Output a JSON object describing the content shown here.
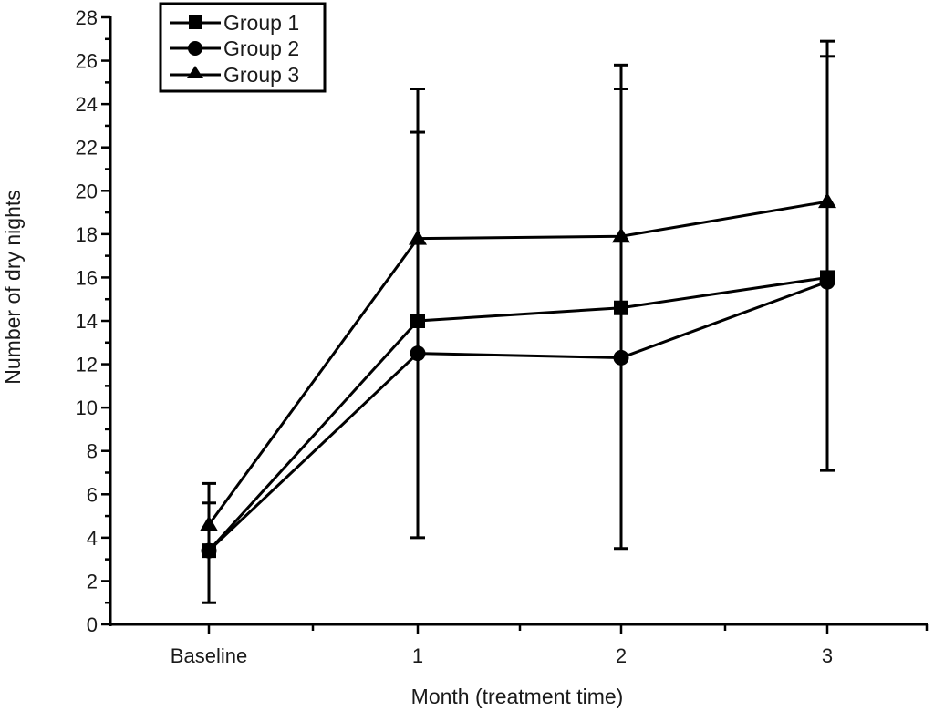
{
  "chart_data": {
    "type": "line",
    "title": "",
    "xlabel": "Month (treatment time)",
    "ylabel": "Number of dry nights",
    "categories": [
      "Baseline",
      "1",
      "2",
      "3"
    ],
    "ylim": [
      0,
      28
    ],
    "yticks": [
      0,
      2,
      4,
      6,
      8,
      10,
      12,
      14,
      16,
      18,
      20,
      22,
      24,
      26,
      28
    ],
    "grid": false,
    "legend_position": "top-left",
    "series": [
      {
        "name": "Group 1",
        "marker": "square",
        "values": [
          3.4,
          14.0,
          14.6,
          16.0
        ]
      },
      {
        "name": "Group 2",
        "marker": "circle",
        "values": [
          3.4,
          12.5,
          12.3,
          15.8
        ]
      },
      {
        "name": "Group 3",
        "marker": "triangle",
        "values": [
          4.6,
          17.8,
          17.9,
          19.5
        ]
      }
    ],
    "error_bars": [
      {
        "category": "Baseline",
        "caps": [
          6.5,
          5.6,
          1.0
        ]
      },
      {
        "category": "1",
        "caps": [
          24.7,
          22.7,
          4.0
        ]
      },
      {
        "category": "2",
        "caps": [
          25.8,
          24.7,
          3.5
        ]
      },
      {
        "category": "3",
        "caps": [
          26.9,
          26.2,
          7.1
        ]
      }
    ],
    "colors": {
      "line": "#000000",
      "text": "#1a1a1a"
    }
  }
}
